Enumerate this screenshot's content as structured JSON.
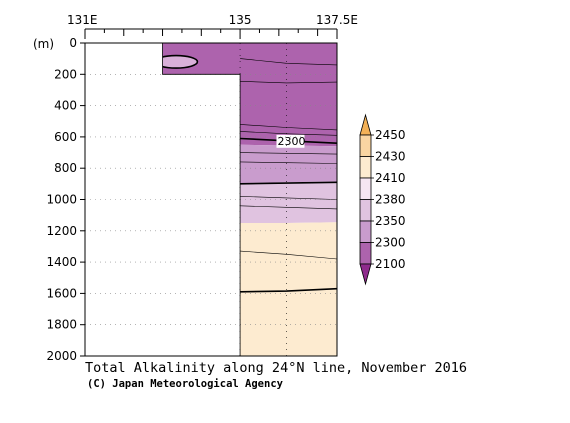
{
  "chart_data": {
    "type": "heatmap",
    "title": "Total Alkalinity along 24°N line, November 2016",
    "credit": "(C) Japan Meteorological Agency",
    "ylabel": "(m)",
    "x_ticks": [
      "131E",
      "135",
      "137.5E"
    ],
    "x_tick_values": [
      131,
      135,
      137.5
    ],
    "xlim": [
      131,
      137.5
    ],
    "ylim": [
      0,
      2000
    ],
    "y_ticks": [
      0,
      200,
      400,
      600,
      800,
      1000,
      1200,
      1400,
      1600,
      1800,
      2000
    ],
    "y_tick_labels": [
      "0",
      "200",
      "400",
      "600",
      "800",
      "1000",
      "1200",
      "1400",
      "1600",
      "1800",
      "2000"
    ],
    "colorbar": {
      "labels": [
        "2450",
        "2430",
        "2410",
        "2380",
        "2350",
        "2300",
        "2100"
      ],
      "colors": [
        "#f3b157",
        "#f9d5a2",
        "#fdebd0",
        "#f6e6f2",
        "#e0c3e0",
        "#c99ccd",
        "#ad63ad",
        "#8e2a8c"
      ]
    },
    "land_boundary": [
      {
        "lon": 131,
        "depth": 0
      },
      {
        "lon": 133.0,
        "depth": 0
      },
      {
        "lon": 133.0,
        "depth": 200
      },
      {
        "lon": 135.0,
        "depth": 200
      },
      {
        "lon": 135.0,
        "depth": 2000
      },
      {
        "lon": 131,
        "depth": 2000
      }
    ],
    "bands": [
      {
        "color": "#ad63ad",
        "top": [
          0,
          0,
          0,
          0
        ],
        "bottom": [
          640,
          650,
          655,
          660
        ]
      },
      {
        "color": "#c99ccd",
        "top": [
          640,
          650,
          655,
          660
        ],
        "bottom": [
          900,
          895,
          890,
          885
        ]
      },
      {
        "color": "#e0c3e0",
        "top": [
          900,
          895,
          890,
          885
        ],
        "bottom": [
          1155,
          1150,
          1150,
          1145
        ]
      },
      {
        "color": "#fdebd0",
        "top": [
          1155,
          1150,
          1150,
          1145
        ],
        "bottom": [
          2000,
          2000,
          2000,
          2000
        ]
      }
    ],
    "band_lons": [
      133.0,
      135.0,
      136.2,
      137.5
    ],
    "contours": [
      {
        "lons": [
          135,
          136.2,
          137.5
        ],
        "depths": [
          100,
          130,
          140
        ],
        "bold": false
      },
      {
        "lons": [
          135,
          136.2,
          137.5
        ],
        "depths": [
          245,
          255,
          250
        ],
        "bold": false
      },
      {
        "lons": [
          135,
          136.2,
          137.5
        ],
        "depths": [
          520,
          540,
          555
        ],
        "bold": false
      },
      {
        "lons": [
          135,
          136.2,
          137.5
        ],
        "depths": [
          565,
          580,
          590
        ],
        "bold": false
      },
      {
        "lons": [
          135,
          136.2,
          137.5
        ],
        "depths": [
          610,
          625,
          640
        ],
        "bold": true,
        "label": "2300"
      },
      {
        "lons": [
          135,
          136.2,
          137.5
        ],
        "depths": [
          700,
          705,
          710
        ],
        "bold": false
      },
      {
        "lons": [
          135,
          136.2,
          137.5
        ],
        "depths": [
          760,
          765,
          770
        ],
        "bold": false
      },
      {
        "lons": [
          135,
          136.2,
          137.5
        ],
        "depths": [
          900,
          895,
          890
        ],
        "bold": true
      },
      {
        "lons": [
          135,
          136.2,
          137.5
        ],
        "depths": [
          980,
          990,
          1000
        ],
        "bold": false
      },
      {
        "lons": [
          135,
          136.2,
          137.5
        ],
        "depths": [
          1040,
          1050,
          1060
        ],
        "bold": false
      },
      {
        "lons": [
          135,
          136.2,
          137.5
        ],
        "depths": [
          1330,
          1350,
          1380
        ],
        "bold": false
      },
      {
        "lons": [
          135,
          136.2,
          137.5
        ],
        "depths": [
          1590,
          1585,
          1570
        ],
        "bold": true
      }
    ],
    "anomaly": {
      "center_lon": 133.35,
      "center_depth": 120,
      "half_width_lon": 0.55,
      "half_height_depth": 40,
      "color": "#d9b0d9"
    },
    "station_lons": [
      135,
      136.2,
      137.5
    ]
  }
}
